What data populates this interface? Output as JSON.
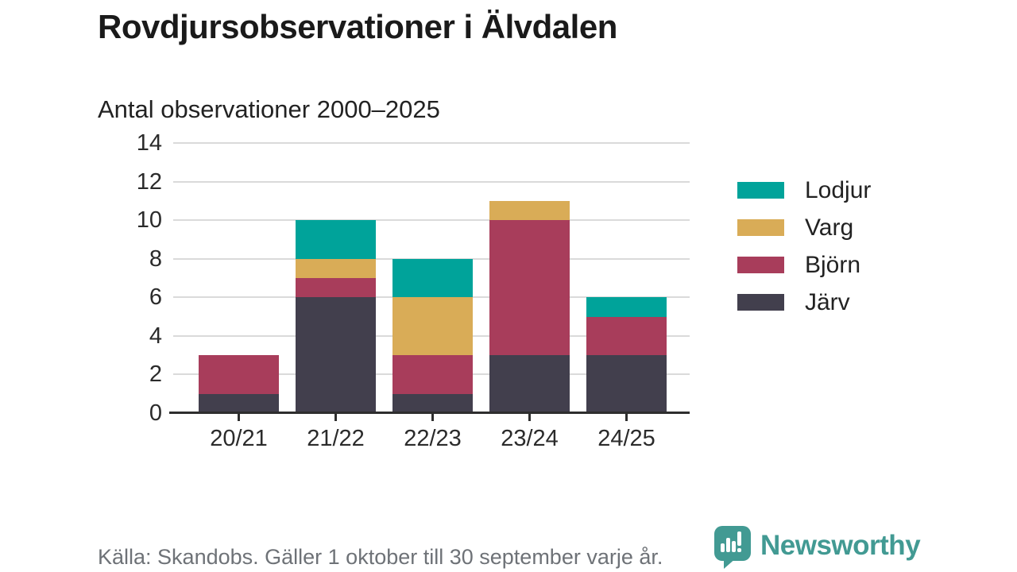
{
  "header": {
    "title": "Rovdjursobservationer i Älvdalen",
    "subtitle": "Antal observationer 2000–2025"
  },
  "chart_data": {
    "type": "bar",
    "stacked": true,
    "title": "Rovdjursobservationer i Älvdalen",
    "subtitle": "Antal observationer 2000–2025",
    "categories": [
      "20/21",
      "21/22",
      "22/23",
      "23/24",
      "24/25"
    ],
    "series": [
      {
        "name": "Järv",
        "color": "#423F4D",
        "values": [
          1,
          6,
          1,
          3,
          3
        ]
      },
      {
        "name": "Björn",
        "color": "#A83D5B",
        "values": [
          2,
          1,
          2,
          7,
          2
        ]
      },
      {
        "name": "Varg",
        "color": "#D9AC57",
        "values": [
          0,
          1,
          3,
          1,
          0
        ]
      },
      {
        "name": "Lodjur",
        "color": "#00A39A",
        "values": [
          0,
          2,
          2,
          0,
          1
        ]
      }
    ],
    "stack_totals": [
      3,
      10,
      8,
      11,
      6
    ],
    "xlabel": "",
    "ylabel": "",
    "ylim": [
      0,
      14
    ],
    "yticks": [
      0,
      2,
      4,
      6,
      8,
      10,
      12,
      14
    ],
    "grid": true,
    "legend_position": "right",
    "legend_order": [
      "Lodjur",
      "Varg",
      "Björn",
      "Järv"
    ]
  },
  "footer": {
    "source_text": "Källa: Skandobs. Gäller 1 oktober till 30 september varje år.",
    "brand_name": "Newsworthy",
    "brand_color": "#429A93"
  },
  "icons": {
    "logo": "newsworthy-chart-bubble-icon"
  }
}
